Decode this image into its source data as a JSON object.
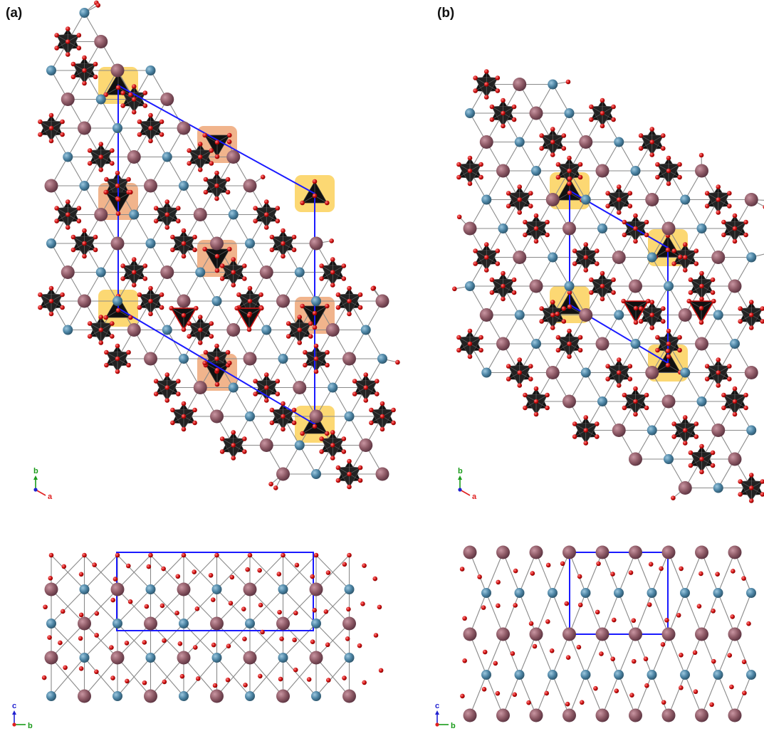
{
  "panels": [
    {
      "label": "(a)",
      "top_axes": {
        "up": "b",
        "side": "a"
      },
      "bottom_axes": {
        "up": "c",
        "side": "b"
      }
    },
    {
      "label": "(b)",
      "top_axes": {
        "up": "b",
        "side": "a"
      },
      "bottom_axes": {
        "up": "c",
        "side": "b"
      }
    }
  ],
  "colors": {
    "large_atom": "#8e5a66",
    "small_atom": "#4c84a4",
    "oxygen": "#d01010",
    "bond": "#8a8a8a",
    "polyhedron": "#111111",
    "unit_cell": "#1a1aff",
    "highlight_yellow": "#fcd873",
    "highlight_orange": "#f1b48c",
    "axis_b": "#1a9b1a",
    "axis_a": "#e02020",
    "axis_c": "#2020d0"
  }
}
